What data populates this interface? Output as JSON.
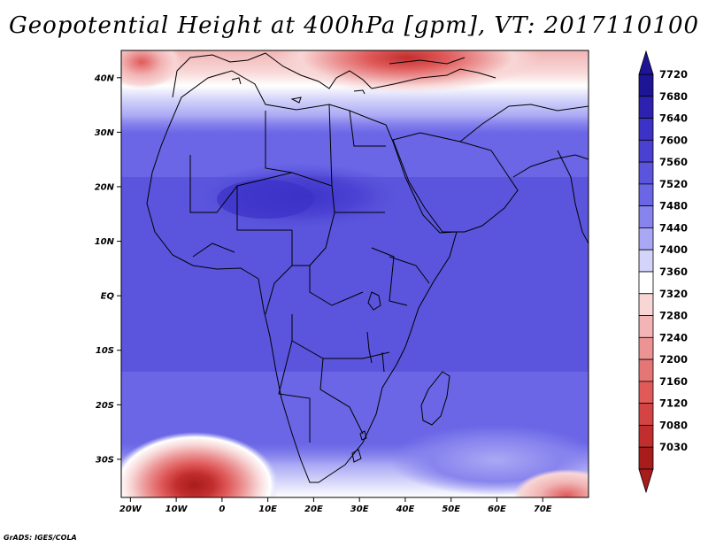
{
  "title": "Geopotential Height at 400hPa [gpm], VT: 2017110100",
  "credit": "GrADS: IGES/COLA",
  "map": {
    "lon_range": [
      -22,
      80
    ],
    "lat_range": [
      -37,
      45
    ],
    "lat_ticks": [
      {
        "value": 40,
        "label": "40N"
      },
      {
        "value": 30,
        "label": "30N"
      },
      {
        "value": 20,
        "label": "20N"
      },
      {
        "value": 10,
        "label": "10N"
      },
      {
        "value": 0,
        "label": "EQ"
      },
      {
        "value": -10,
        "label": "10S"
      },
      {
        "value": -20,
        "label": "20S"
      },
      {
        "value": -30,
        "label": "30S"
      }
    ],
    "lon_ticks": [
      {
        "value": -20,
        "label": "20W"
      },
      {
        "value": -10,
        "label": "10W"
      },
      {
        "value": 0,
        "label": "0"
      },
      {
        "value": 10,
        "label": "10E"
      },
      {
        "value": 20,
        "label": "20E"
      },
      {
        "value": 30,
        "label": "30E"
      },
      {
        "value": 40,
        "label": "40E"
      },
      {
        "value": 50,
        "label": "50E"
      },
      {
        "value": 60,
        "label": "60E"
      },
      {
        "value": 70,
        "label": "70E"
      }
    ]
  },
  "colorbar": {
    "levels": [
      {
        "value": "7720",
        "color": "#1e1496"
      },
      {
        "value": "7680",
        "color": "#2d22b0"
      },
      {
        "value": "7640",
        "color": "#3c32c8"
      },
      {
        "value": "7600",
        "color": "#4a40d2"
      },
      {
        "value": "7560",
        "color": "#5a55dc"
      },
      {
        "value": "7520",
        "color": "#6a66e6"
      },
      {
        "value": "7480",
        "color": "#8884ee"
      },
      {
        "value": "7440",
        "color": "#aaa8f4"
      },
      {
        "value": "7400",
        "color": "#d4d4fa"
      },
      {
        "value": "7360",
        "color": "#ffffff"
      },
      {
        "value": "7320",
        "color": "#f8d6d6"
      },
      {
        "value": "7280",
        "color": "#f2b4b4"
      },
      {
        "value": "7240",
        "color": "#ec9494"
      },
      {
        "value": "7200",
        "color": "#e67676"
      },
      {
        "value": "7160",
        "color": "#e05a5a"
      },
      {
        "value": "7120",
        "color": "#d44444"
      },
      {
        "value": "7080",
        "color": "#c22e2e"
      },
      {
        "value": "7030",
        "color": "#a81c1c"
      }
    ],
    "over_color": "#1e1496",
    "under_color": "#a81c1c"
  }
}
